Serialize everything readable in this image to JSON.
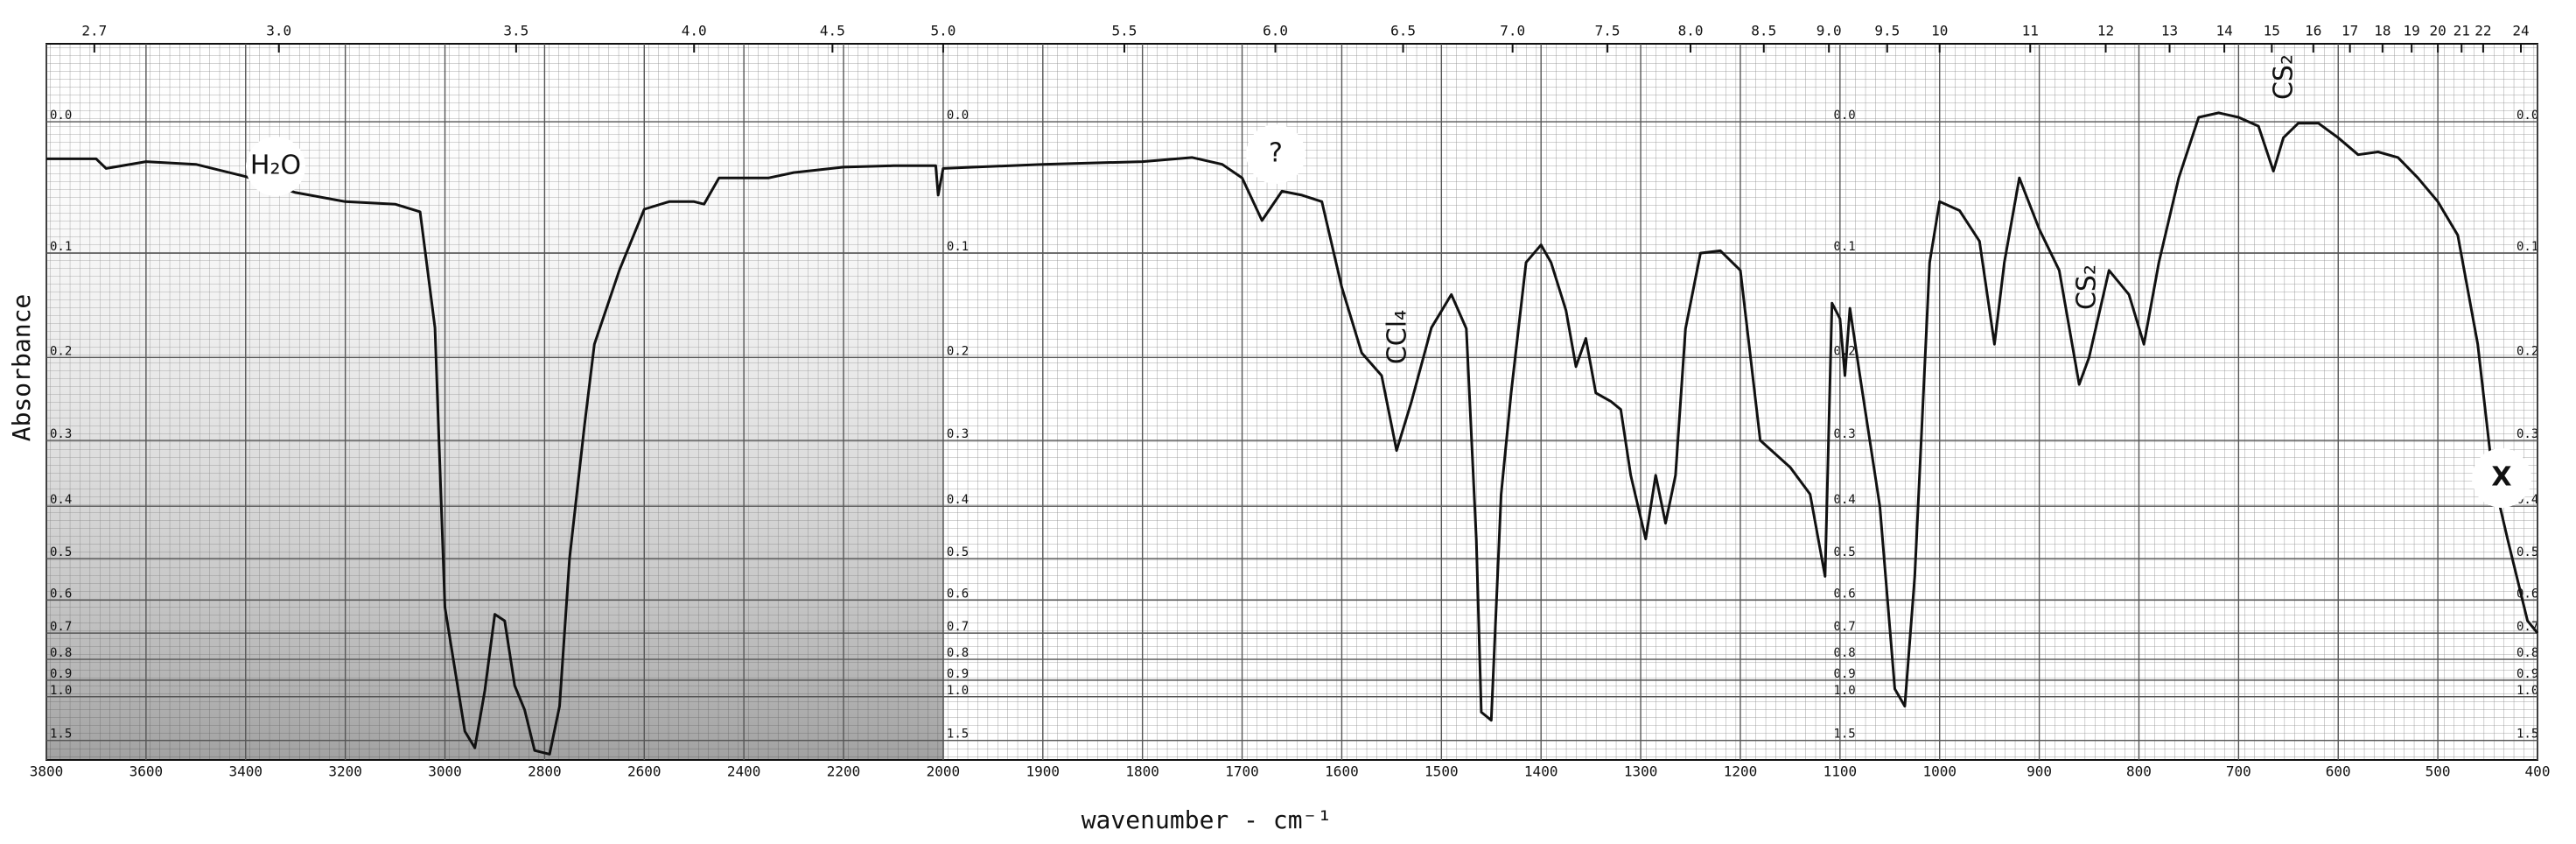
{
  "chart_data": {
    "type": "line",
    "xlabel": "wavenumber - cm⁻¹",
    "ylabel": "Absorbance",
    "annotations": [
      "H₂O",
      "?",
      "CCl₄",
      "CS₂",
      "CS₂",
      "X"
    ],
    "color": "#111111",
    "grid": true,
    "yscale": "transmittance",
    "xscale_break": 2000,
    "xscale_ratio": 2,
    "xlim": [
      3800,
      400
    ],
    "ylim": [
      -0.05,
      3
    ],
    "xticks": [
      3800,
      3600,
      3400,
      3200,
      3000,
      2800,
      2600,
      2400,
      2200,
      2000,
      1900,
      1800,
      1700,
      1600,
      1500,
      1400,
      1300,
      1200,
      1100,
      1000,
      900,
      800,
      700,
      600,
      500,
      400
    ],
    "yticks": [
      {
        "value": 0,
        "label": "0.0"
      },
      0.1,
      0.2,
      0.3,
      0.4,
      0.5,
      0.6,
      0.7,
      0.8,
      0.9,
      {
        "value": 1,
        "label": "1.0"
      },
      1.5
    ],
    "x2ticks": [
      2.7,
      {
        "value": 3,
        "label": "3.0"
      },
      3.5,
      {
        "value": 4,
        "label": "4.0"
      },
      4.5,
      {
        "value": 5,
        "label": "5.0"
      },
      5.5,
      {
        "value": 6,
        "label": "6.0"
      },
      6.5,
      {
        "value": 7,
        "label": "7.0"
      },
      7.5,
      {
        "value": 8,
        "label": "8.0"
      },
      8.5,
      {
        "value": 9,
        "label": "9.0"
      },
      9.5,
      10,
      11,
      12,
      13,
      14,
      15,
      16,
      17,
      18,
      19,
      20,
      21,
      22,
      24
    ],
    "x": [
      3800,
      3700,
      3680,
      3600,
      3500,
      3400,
      3300,
      3200,
      3100,
      3050,
      3020,
      3000,
      2960,
      2940,
      2920,
      2900,
      2880,
      2860,
      2840,
      2820,
      2790,
      2770,
      2750,
      2720,
      2700,
      2650,
      2600,
      2550,
      2500,
      2480,
      2450,
      2400,
      2350,
      2300,
      2200,
      2100,
      2015,
      2010,
      2000,
      1900,
      1800,
      1750,
      1720,
      1700,
      1680,
      1660,
      1640,
      1620,
      1600,
      1580,
      1560,
      1545,
      1530,
      1510,
      1490,
      1475,
      1465,
      1460,
      1450,
      1440,
      1430,
      1415,
      1400,
      1390,
      1375,
      1365,
      1355,
      1345,
      1330,
      1320,
      1310,
      1295,
      1285,
      1275,
      1265,
      1255,
      1240,
      1220,
      1200,
      1180,
      1150,
      1130,
      1115,
      1108,
      1100,
      1095,
      1090,
      1080,
      1060,
      1045,
      1035,
      1025,
      1010,
      1000,
      980,
      960,
      945,
      935,
      920,
      900,
      880,
      860,
      850,
      830,
      810,
      795,
      780,
      760,
      740,
      720,
      700,
      680,
      665,
      655,
      640,
      620,
      600,
      580,
      560,
      540,
      520,
      500,
      480,
      460,
      445,
      430,
      410,
      400
    ],
    "values": [
      0.026,
      0.026,
      0.033,
      0.028,
      0.03,
      0.039,
      0.051,
      0.058,
      0.06,
      0.066,
      0.169,
      0.62,
      1.34,
      1.7,
      0.96,
      0.64,
      0.66,
      0.93,
      1.1,
      1.8,
      2.0,
      1.07,
      0.5,
      0.28,
      0.186,
      0.115,
      0.064,
      0.058,
      0.058,
      0.06,
      0.04,
      0.04,
      0.04,
      0.036,
      0.032,
      0.031,
      0.031,
      0.053,
      0.033,
      0.03,
      0.028,
      0.025,
      0.03,
      0.04,
      0.073,
      0.05,
      0.053,
      0.058,
      0.13,
      0.195,
      0.22,
      0.314,
      0.25,
      0.169,
      0.137,
      0.17,
      0.46,
      1.12,
      1.2,
      0.38,
      0.24,
      0.108,
      0.093,
      0.108,
      0.152,
      0.21,
      0.18,
      0.24,
      0.25,
      0.26,
      0.35,
      0.46,
      0.35,
      0.43,
      0.35,
      0.17,
      0.1,
      0.098,
      0.115,
      0.3,
      0.338,
      0.38,
      0.54,
      0.145,
      0.16,
      0.22,
      0.15,
      0.22,
      0.4,
      0.95,
      1.07,
      0.54,
      0.108,
      0.058,
      0.065,
      0.09,
      0.186,
      0.108,
      0.04,
      0.08,
      0.115,
      0.23,
      0.2,
      0.115,
      0.137,
      0.186,
      0.108,
      0.04,
      -0.003,
      -0.006,
      -0.003,
      0.003,
      0.035,
      0.011,
      0.001,
      0.001,
      0.011,
      0.023,
      0.021,
      0.025,
      0.04,
      0.058,
      0.085,
      0.186,
      0.35,
      0.46,
      0.66,
      0.7
    ]
  }
}
